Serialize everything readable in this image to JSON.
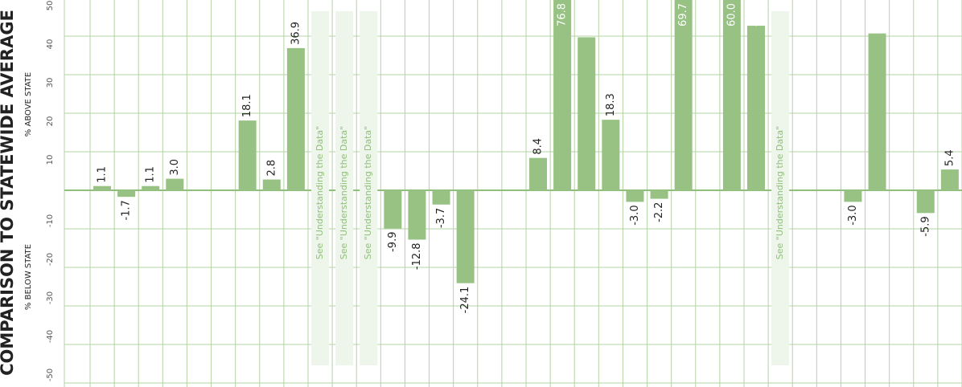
{
  "chart_data": {
    "type": "bar",
    "title": "COMPARISON TO STATEWIDE AVERAGE",
    "y_label_above": "% ABOVE STATE",
    "y_label_below": "% BELOW STATE",
    "color": "#97c283",
    "grid": true,
    "ylim": [
      -50,
      50
    ],
    "yticks": [
      -50,
      -40,
      -30,
      -20,
      -10,
      0,
      10,
      20,
      30,
      40,
      50
    ],
    "values": [
      1.1,
      -1.7,
      1.1,
      3.0,
      null,
      null,
      18.1,
      2.8,
      36.9,
      null,
      null,
      null,
      -9.9,
      -12.8,
      -3.7,
      -24.1,
      null,
      null,
      8.4,
      76.8,
      39.7,
      18.3,
      -3.0,
      -2.2,
      69.7,
      null,
      60.0,
      42.7,
      null,
      null,
      null,
      -3.0,
      40.7,
      null,
      -5.9,
      5.4
    ],
    "value_labels": [
      "1.1",
      "-1.7",
      "1.1",
      "3.0",
      null,
      null,
      "18.1",
      "2.8",
      "36.9",
      null,
      null,
      null,
      "-9.9",
      "-12.8",
      "-3.7",
      "-24.1",
      null,
      null,
      "8.4",
      "76.8",
      "39.7",
      "18.3",
      "-3.0",
      "-2.2",
      "69.7",
      null,
      "60.0",
      "42.7",
      null,
      null,
      null,
      "-3.0",
      "40.7",
      null,
      "-5.9",
      "5.4"
    ],
    "notes": [
      null,
      null,
      null,
      null,
      null,
      null,
      null,
      null,
      null,
      "See \"Understanding the Data\"",
      "See \"Understanding the Data\"",
      "See \"Understanding the Data\"",
      null,
      null,
      null,
      null,
      null,
      null,
      null,
      null,
      null,
      null,
      null,
      null,
      null,
      null,
      null,
      null,
      "See \"Understanding the Data\"",
      null,
      null,
      null,
      null,
      null,
      null,
      null
    ]
  }
}
